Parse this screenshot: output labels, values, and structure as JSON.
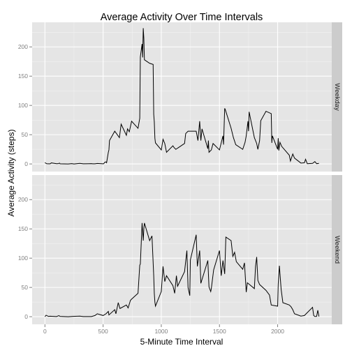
{
  "chart_data": {
    "type": "line",
    "title": "Average Activity Over Time Intervals",
    "xlabel": "5-Minute Time Interval",
    "ylabel": "Average Activity (steps)",
    "xlim": [
      -110,
      2465
    ],
    "ylim": [
      -13,
      242
    ],
    "x_ticks": [
      0,
      500,
      1000,
      1500,
      2000
    ],
    "x_tick_labels": [
      "0",
      "500",
      "1000",
      "1500",
      "2000"
    ],
    "y_ticks": [
      0,
      50,
      100,
      150,
      200
    ],
    "y_tick_labels": [
      "0",
      "50",
      "100",
      "150",
      "200"
    ],
    "grid": true,
    "line_color": "#000000",
    "panel_bg": "#e5e5e5",
    "strip_bg": "#cccccc",
    "grid_major": "#ffffff",
    "grid_minor": "#f2f2f2",
    "panels": [
      {
        "strip_label": "Weekday",
        "points": [
          [
            0,
            2.3
          ],
          [
            15,
            0.4
          ],
          [
            30,
            0.2
          ],
          [
            45,
            0.2
          ],
          [
            55,
            1.8
          ],
          [
            100,
            0.4
          ],
          [
            115,
            0.5
          ],
          [
            125,
            1.5
          ],
          [
            130,
            0.3
          ],
          [
            200,
            0
          ],
          [
            230,
            0.5
          ],
          [
            250,
            0
          ],
          [
            300,
            1.0
          ],
          [
            330,
            0.2
          ],
          [
            400,
            0.5
          ],
          [
            410,
            0.3
          ],
          [
            430,
            0.3
          ],
          [
            450,
            0.8
          ],
          [
            500,
            0.3
          ],
          [
            505,
            0.4
          ],
          [
            515,
            3.0
          ],
          [
            525,
            3.5
          ],
          [
            530,
            2.2
          ],
          [
            540,
            14
          ],
          [
            545,
            20
          ],
          [
            550,
            24
          ],
          [
            555,
            40
          ],
          [
            600,
            56
          ],
          [
            640,
            45
          ],
          [
            655,
            68
          ],
          [
            700,
            49
          ],
          [
            710,
            60
          ],
          [
            725,
            55
          ],
          [
            745,
            73
          ],
          [
            800,
            61
          ],
          [
            815,
            78
          ],
          [
            820,
            183
          ],
          [
            835,
            205
          ],
          [
            840,
            182
          ],
          [
            845,
            232
          ],
          [
            850,
            215
          ],
          [
            855,
            178
          ],
          [
            900,
            172
          ],
          [
            930,
            170
          ],
          [
            935,
            85
          ],
          [
            940,
            72
          ],
          [
            945,
            44
          ],
          [
            950,
            36
          ],
          [
            1000,
            24
          ],
          [
            1015,
            42
          ],
          [
            1030,
            35
          ],
          [
            1045,
            20
          ],
          [
            1100,
            31
          ],
          [
            1110,
            28
          ],
          [
            1125,
            25
          ],
          [
            1200,
            35
          ],
          [
            1210,
            52
          ],
          [
            1230,
            56
          ],
          [
            1300,
            56
          ],
          [
            1315,
            40
          ],
          [
            1330,
            73
          ],
          [
            1340,
            40
          ],
          [
            1350,
            60
          ],
          [
            1400,
            26
          ],
          [
            1405,
            40
          ],
          [
            1410,
            20
          ],
          [
            1430,
            24
          ],
          [
            1445,
            35
          ],
          [
            1500,
            24
          ],
          [
            1530,
            48
          ],
          [
            1535,
            33
          ],
          [
            1545,
            95
          ],
          [
            1550,
            93
          ],
          [
            1600,
            61
          ],
          [
            1620,
            45
          ],
          [
            1640,
            33
          ],
          [
            1700,
            25
          ],
          [
            1720,
            37
          ],
          [
            1730,
            48
          ],
          [
            1745,
            73
          ],
          [
            1750,
            56
          ],
          [
            1755,
            89
          ],
          [
            1800,
            45
          ],
          [
            1820,
            35
          ],
          [
            1830,
            25
          ],
          [
            1845,
            40
          ],
          [
            1855,
            74
          ],
          [
            1900,
            90
          ],
          [
            1945,
            86
          ],
          [
            1950,
            36
          ],
          [
            1955,
            48
          ],
          [
            2000,
            25
          ],
          [
            2005,
            44
          ],
          [
            2010,
            23
          ],
          [
            2020,
            37
          ],
          [
            2035,
            30
          ],
          [
            2100,
            15
          ],
          [
            2110,
            5
          ],
          [
            2130,
            17
          ],
          [
            2145,
            10
          ],
          [
            2200,
            1.5
          ],
          [
            2230,
            2
          ],
          [
            2240,
            8
          ],
          [
            2255,
            0.4
          ],
          [
            2300,
            1.0
          ],
          [
            2320,
            4
          ],
          [
            2335,
            0.5
          ],
          [
            2355,
            1.0
          ]
        ]
      },
      {
        "strip_label": "Weekend",
        "points": [
          [
            0,
            0
          ],
          [
            10,
            2.5
          ],
          [
            30,
            0.5
          ],
          [
            45,
            0.8
          ],
          [
            100,
            0.3
          ],
          [
            120,
            1.8
          ],
          [
            130,
            0.5
          ],
          [
            200,
            0
          ],
          [
            240,
            0.5
          ],
          [
            300,
            1.0
          ],
          [
            330,
            0.2
          ],
          [
            400,
            0.3
          ],
          [
            430,
            2.0
          ],
          [
            450,
            5
          ],
          [
            500,
            2
          ],
          [
            525,
            5
          ],
          [
            545,
            9
          ],
          [
            550,
            3
          ],
          [
            600,
            12
          ],
          [
            610,
            5
          ],
          [
            630,
            24
          ],
          [
            645,
            14
          ],
          [
            700,
            20
          ],
          [
            715,
            15
          ],
          [
            735,
            28
          ],
          [
            745,
            30
          ],
          [
            800,
            40
          ],
          [
            815,
            88
          ],
          [
            820,
            90
          ],
          [
            835,
            160
          ],
          [
            845,
            130
          ],
          [
            850,
            150
          ],
          [
            855,
            160
          ],
          [
            900,
            130
          ],
          [
            920,
            138
          ],
          [
            935,
            70
          ],
          [
            940,
            40
          ],
          [
            945,
            25
          ],
          [
            950,
            18
          ],
          [
            1000,
            43
          ],
          [
            1015,
            86
          ],
          [
            1030,
            60
          ],
          [
            1045,
            70
          ],
          [
            1100,
            53
          ],
          [
            1115,
            40
          ],
          [
            1130,
            70
          ],
          [
            1140,
            52
          ],
          [
            1200,
            77
          ],
          [
            1220,
            113
          ],
          [
            1230,
            50
          ],
          [
            1245,
            36
          ],
          [
            1250,
            97
          ],
          [
            1300,
            140
          ],
          [
            1310,
            86
          ],
          [
            1330,
            113
          ],
          [
            1340,
            57
          ],
          [
            1400,
            96
          ],
          [
            1410,
            51
          ],
          [
            1425,
            43
          ],
          [
            1430,
            48
          ],
          [
            1450,
            80
          ],
          [
            1500,
            113
          ],
          [
            1515,
            70
          ],
          [
            1530,
            96
          ],
          [
            1545,
            73
          ],
          [
            1555,
            136
          ],
          [
            1600,
            130
          ],
          [
            1615,
            103
          ],
          [
            1630,
            110
          ],
          [
            1645,
            94
          ],
          [
            1700,
            81
          ],
          [
            1715,
            92
          ],
          [
            1730,
            42
          ],
          [
            1740,
            58
          ],
          [
            1800,
            48
          ],
          [
            1810,
            86
          ],
          [
            1820,
            102
          ],
          [
            1830,
            62
          ],
          [
            1845,
            55
          ],
          [
            1900,
            45
          ],
          [
            1930,
            37
          ],
          [
            1945,
            20
          ],
          [
            2000,
            18
          ],
          [
            2005,
            56
          ],
          [
            2015,
            87
          ],
          [
            2030,
            47
          ],
          [
            2045,
            24
          ],
          [
            2100,
            20
          ],
          [
            2115,
            17
          ],
          [
            2130,
            12
          ],
          [
            2145,
            5
          ],
          [
            2200,
            1
          ],
          [
            2230,
            2
          ],
          [
            2300,
            16
          ],
          [
            2310,
            2
          ],
          [
            2320,
            0.4
          ],
          [
            2335,
            0.5
          ],
          [
            2345,
            11
          ],
          [
            2355,
            0.3
          ]
        ]
      }
    ]
  }
}
